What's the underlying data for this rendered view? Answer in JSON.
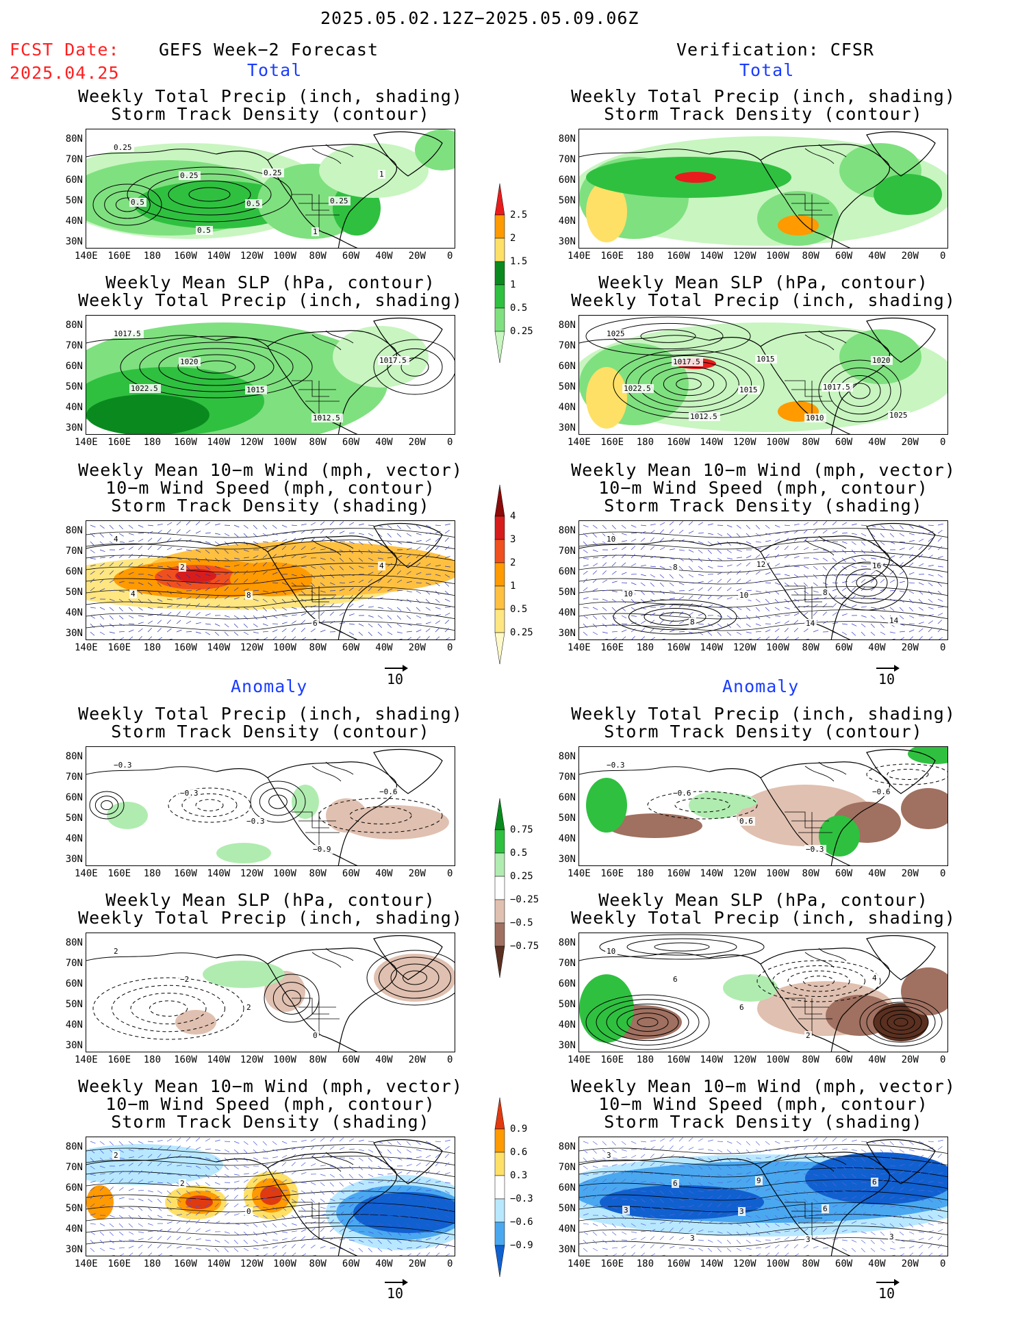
{
  "header": {
    "period": "2025.05.02.12Z−2025.05.09.06Z",
    "fcst_label": "FCST Date:",
    "fcst_date": "2025.04.25",
    "left_title": "GEFS Week−2 Forecast",
    "right_title": "Verification: CFSR"
  },
  "sections": {
    "total": "Total",
    "anomaly": "Anomaly"
  },
  "panel_titles": {
    "precip_track": "Weekly Total Precip (inch, shading)\nStorm Track Density (contour)",
    "slp_precip": "Weekly Mean SLP (hPa, contour)\nWeekly Total Precip (inch, shading)",
    "wind_track": "Weekly Mean 10−m Wind (mph, vector)\n10−m Wind Speed (mph, contour)\nStorm Track Density (shading)"
  },
  "axes": {
    "lat_labels": [
      "80N",
      "70N",
      "60N",
      "50N",
      "40N",
      "30N"
    ],
    "lon_labels": [
      "140E",
      "160E",
      "180",
      "160W",
      "140W",
      "120W",
      "100W",
      "80W",
      "60W",
      "40W",
      "20W",
      "0"
    ]
  },
  "colorbars": {
    "total_precip": {
      "labels": [
        "2.5",
        "2",
        "1.5",
        "1",
        "0.5",
        "0.25"
      ],
      "colors": [
        "#e81c1c",
        "#ff9a00",
        "#ffe066",
        "#0a8a1e",
        "#2fc040",
        "#7fe07f",
        "#c8f5c0"
      ]
    },
    "total_track": {
      "labels": [
        "4",
        "3",
        "2",
        "1",
        "0.5",
        "0.25"
      ],
      "colors": [
        "#8b0a0a",
        "#d81c1c",
        "#f0501e",
        "#ff9a00",
        "#ffc040",
        "#ffe680",
        "#fff8c8"
      ]
    },
    "anom_precip": {
      "labels": [
        "0.75",
        "0.5",
        "0.25",
        "−0.25",
        "−0.5",
        "−0.75"
      ],
      "colors": [
        "#0a8a1e",
        "#2fc040",
        "#b0ecb0",
        "#ffffff",
        "#e0c0b0",
        "#a07060",
        "#5a3020"
      ]
    },
    "anom_track": {
      "labels": [
        "0.9",
        "0.6",
        "0.3",
        "−0.3",
        "−0.6",
        "−0.9"
      ],
      "colors": [
        "#e03a10",
        "#ff9a00",
        "#ffe066",
        "#ffffff",
        "#b8e8ff",
        "#4aa8f0",
        "#1060d0"
      ]
    }
  },
  "contour_labels": {
    "gefs_total_precip": [
      "0.25",
      "0.25",
      "0.5",
      "1",
      "1",
      "0.5",
      "0.5",
      "0.25",
      "0.25"
    ],
    "gefs_total_slp": [
      "1017.5",
      "1020",
      "1015",
      "1012.5",
      "1017.5",
      "1022.5"
    ],
    "cfsr_total_slp": [
      "1025",
      "1017.5",
      "1015",
      "1010",
      "1020",
      "1022.5",
      "1012.5",
      "1015",
      "1017.5",
      "1025"
    ],
    "gefs_total_wind": [
      "4",
      "2",
      "8",
      "6",
      "4",
      "4"
    ],
    "cfsr_total_wind": [
      "10",
      "8",
      "10",
      "14",
      "16",
      "10",
      "8",
      "12",
      "8",
      "14"
    ],
    "gefs_anom_precip": [
      "−0.3",
      "−0.3",
      "−0.3",
      "−0.9",
      "−0.6"
    ],
    "cfsr_anom_precip": [
      "−0.3",
      "−0.6",
      "0.6",
      "−0.3",
      "−0.6"
    ],
    "gefs_anom_slp": [
      "2",
      "−2",
      "2",
      "0"
    ],
    "cfsr_anom_slp": [
      "10",
      "6",
      "6",
      "2",
      "4"
    ],
    "gefs_anom_wind": [
      "2",
      "2",
      "0"
    ],
    "cfsr_anom_wind": [
      "3",
      "6",
      "3",
      "3",
      "6",
      "3",
      "3",
      "9",
      "6",
      "3"
    ]
  },
  "ref_vector": "10"
}
